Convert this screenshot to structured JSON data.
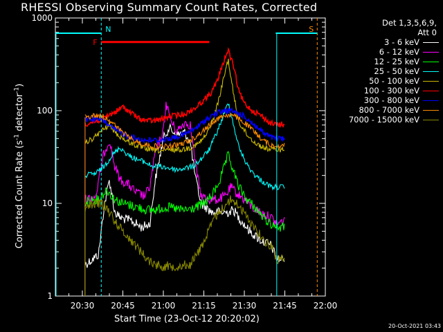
{
  "title": "RHESSI Observing Summary Count Rates, Corrected",
  "footer": "20-Oct-2021 03:43",
  "legend": {
    "header_line1": "Det 1,3,5,6,9,",
    "header_line2": "Att 0"
  },
  "chart_data": {
    "type": "line",
    "title": "RHESSI Observing Summary Count Rates, Corrected",
    "xlabel": "Start Time (23-Oct-12 20:20:02)",
    "ylabel": "Corrected Count Rate (s-1 detector-1)",
    "y_scale": "log",
    "ylim": [
      1,
      1000
    ],
    "xlim": [
      "20:20",
      "22:00"
    ],
    "x_ticks": [
      "20:30",
      "20:45",
      "21:00",
      "21:15",
      "21:30",
      "21:45",
      "22:00"
    ],
    "y_ticks": [
      "1",
      "10",
      "100",
      "1000"
    ],
    "grid": false,
    "legend_position": "right-outside",
    "annotations": [
      {
        "label": "N",
        "time": "20:37",
        "color": "#00ffff",
        "style": "dashed"
      },
      {
        "label": "S",
        "time": "21:57",
        "color": "#ff8c00",
        "style": "dashed"
      },
      {
        "label": "F",
        "start": "20:37",
        "end": "21:17",
        "level": 550,
        "color": "#ff0000"
      }
    ],
    "series": [
      {
        "name": "3 - 6 keV",
        "color": "#ffffff",
        "points": [
          [
            "20:31",
            2.2
          ],
          [
            "20:33",
            2.4
          ],
          [
            "20:36",
            2.8
          ],
          [
            "20:38",
            9
          ],
          [
            "20:40",
            18
          ],
          [
            "20:42",
            8
          ],
          [
            "20:44",
            7
          ],
          [
            "20:48",
            6.5
          ],
          [
            "20:52",
            5.5
          ],
          [
            "20:55",
            6
          ],
          [
            "20:57",
            18
          ],
          [
            "21:00",
            50
          ],
          [
            "21:02",
            65
          ],
          [
            "21:05",
            55
          ],
          [
            "21:08",
            58
          ],
          [
            "21:10",
            45
          ],
          [
            "21:12",
            18
          ],
          [
            "21:14",
            10
          ],
          [
            "21:18",
            8
          ],
          [
            "21:22",
            8
          ],
          [
            "21:24",
            8
          ],
          [
            "21:26",
            8.5
          ],
          [
            "21:28",
            7
          ],
          [
            "21:32",
            5
          ],
          [
            "21:36",
            4
          ],
          [
            "21:40",
            3.5
          ],
          [
            "21:42",
            2.5
          ],
          [
            "21:45",
            2.5
          ]
        ]
      },
      {
        "name": "6 - 12 keV",
        "color": "#ff00ff",
        "points": [
          [
            "20:31",
            11
          ],
          [
            "20:35",
            12
          ],
          [
            "20:38",
            35
          ],
          [
            "20:40",
            48
          ],
          [
            "20:42",
            25
          ],
          [
            "20:44",
            18
          ],
          [
            "20:47",
            16
          ],
          [
            "20:50",
            13
          ],
          [
            "20:53",
            12
          ],
          [
            "20:55",
            15
          ],
          [
            "20:57",
            35
          ],
          [
            "21:00",
            60
          ],
          [
            "21:01",
            120
          ],
          [
            "21:03",
            75
          ],
          [
            "21:05",
            60
          ],
          [
            "21:08",
            75
          ],
          [
            "21:10",
            70
          ],
          [
            "21:12",
            25
          ],
          [
            "21:14",
            12
          ],
          [
            "21:17",
            11
          ],
          [
            "21:20",
            11
          ],
          [
            "21:23",
            12
          ],
          [
            "21:25",
            15
          ],
          [
            "21:27",
            13
          ],
          [
            "21:30",
            11
          ],
          [
            "21:33",
            9
          ],
          [
            "21:36",
            8
          ],
          [
            "21:40",
            7
          ],
          [
            "21:42",
            6
          ],
          [
            "21:45",
            6.5
          ]
        ]
      },
      {
        "name": "12 - 25 keV",
        "color": "#00ff00",
        "points": [
          [
            "20:31",
            10
          ],
          [
            "20:33",
            11
          ],
          [
            "20:36",
            11
          ],
          [
            "20:39",
            14
          ],
          [
            "20:42",
            11
          ],
          [
            "20:45",
            10
          ],
          [
            "20:48",
            9.5
          ],
          [
            "20:51",
            9
          ],
          [
            "20:54",
            8.5
          ],
          [
            "20:57",
            8.5
          ],
          [
            "21:00",
            9
          ],
          [
            "21:03",
            9
          ],
          [
            "21:06",
            8.5
          ],
          [
            "21:09",
            8.5
          ],
          [
            "21:12",
            9
          ],
          [
            "21:15",
            10
          ],
          [
            "21:18",
            12
          ],
          [
            "21:21",
            18
          ],
          [
            "21:24",
            33
          ],
          [
            "21:26",
            22
          ],
          [
            "21:28",
            15
          ],
          [
            "21:31",
            11
          ],
          [
            "21:34",
            9
          ],
          [
            "21:37",
            7
          ],
          [
            "21:40",
            6
          ],
          [
            "21:43",
            5.5
          ],
          [
            "21:45",
            5.5
          ]
        ]
      },
      {
        "name": "25 - 50 keV",
        "color": "#00ffff",
        "points": [
          [
            "20:31",
            20
          ],
          [
            "20:35",
            21
          ],
          [
            "20:38",
            25
          ],
          [
            "20:41",
            33
          ],
          [
            "20:44",
            40
          ],
          [
            "20:47",
            33
          ],
          [
            "20:50",
            30
          ],
          [
            "20:53",
            28
          ],
          [
            "20:56",
            25
          ],
          [
            "20:59",
            25
          ],
          [
            "21:02",
            24
          ],
          [
            "21:05",
            23
          ],
          [
            "21:08",
            24
          ],
          [
            "21:11",
            25
          ],
          [
            "21:14",
            30
          ],
          [
            "21:17",
            38
          ],
          [
            "21:20",
            60
          ],
          [
            "21:23",
            100
          ],
          [
            "21:24",
            125
          ],
          [
            "21:26",
            70
          ],
          [
            "21:28",
            40
          ],
          [
            "21:31",
            26
          ],
          [
            "21:34",
            20
          ],
          [
            "21:37",
            17
          ],
          [
            "21:40",
            15
          ],
          [
            "21:45",
            15
          ]
        ]
      },
      {
        "name": "50 - 100 keV",
        "color": "#ccbb00",
        "points": [
          [
            "20:31",
            45
          ],
          [
            "20:34",
            50
          ],
          [
            "20:37",
            60
          ],
          [
            "20:40",
            70
          ],
          [
            "20:43",
            55
          ],
          [
            "20:46",
            48
          ],
          [
            "20:49",
            43
          ],
          [
            "20:52",
            40
          ],
          [
            "20:55",
            38
          ],
          [
            "20:58",
            37
          ],
          [
            "21:01",
            37
          ],
          [
            "21:04",
            38
          ],
          [
            "21:07",
            38
          ],
          [
            "21:10",
            40
          ],
          [
            "21:13",
            44
          ],
          [
            "21:16",
            55
          ],
          [
            "21:19",
            90
          ],
          [
            "21:21",
            150
          ],
          [
            "21:23",
            270
          ],
          [
            "21:24",
            360
          ],
          [
            "21:26",
            150
          ],
          [
            "21:28",
            75
          ],
          [
            "21:31",
            55
          ],
          [
            "21:34",
            45
          ],
          [
            "21:37",
            40
          ],
          [
            "21:40",
            38
          ],
          [
            "21:45",
            38
          ]
        ]
      },
      {
        "name": "100 - 300 keV",
        "color": "#ff0000",
        "points": [
          [
            "20:31",
            72
          ],
          [
            "20:34",
            75
          ],
          [
            "20:37",
            80
          ],
          [
            "20:40",
            90
          ],
          [
            "20:43",
            100
          ],
          [
            "20:45",
            110
          ],
          [
            "20:48",
            95
          ],
          [
            "20:51",
            82
          ],
          [
            "20:54",
            78
          ],
          [
            "20:57",
            78
          ],
          [
            "21:00",
            82
          ],
          [
            "21:03",
            88
          ],
          [
            "21:06",
            90
          ],
          [
            "21:09",
            95
          ],
          [
            "21:12",
            108
          ],
          [
            "21:15",
            130
          ],
          [
            "21:18",
            160
          ],
          [
            "21:20",
            210
          ],
          [
            "21:22",
            320
          ],
          [
            "21:24",
            450
          ],
          [
            "21:26",
            300
          ],
          [
            "21:28",
            160
          ],
          [
            "21:30",
            120
          ],
          [
            "21:33",
            100
          ],
          [
            "21:36",
            90
          ],
          [
            "21:39",
            75
          ],
          [
            "21:42",
            70
          ],
          [
            "21:45",
            72
          ]
        ]
      },
      {
        "name": "300 - 800 keV",
        "color": "#0000ff",
        "points": [
          [
            "20:31",
            80
          ],
          [
            "20:35",
            82
          ],
          [
            "20:38",
            78
          ],
          [
            "20:41",
            65
          ],
          [
            "20:44",
            58
          ],
          [
            "20:47",
            53
          ],
          [
            "20:50",
            50
          ],
          [
            "20:53",
            48
          ],
          [
            "20:56",
            48
          ],
          [
            "20:59",
            48
          ],
          [
            "21:02",
            50
          ],
          [
            "21:05",
            52
          ],
          [
            "21:08",
            56
          ],
          [
            "21:11",
            62
          ],
          [
            "21:14",
            72
          ],
          [
            "21:17",
            85
          ],
          [
            "21:20",
            95
          ],
          [
            "21:23",
            100
          ],
          [
            "21:26",
            98
          ],
          [
            "21:29",
            90
          ],
          [
            "21:32",
            78
          ],
          [
            "21:35",
            65
          ],
          [
            "21:38",
            55
          ],
          [
            "21:41",
            50
          ],
          [
            "21:45",
            50
          ]
        ]
      },
      {
        "name": "800 - 7000 keV",
        "color": "#ff8c00",
        "points": [
          [
            "20:31",
            85
          ],
          [
            "20:34",
            88
          ],
          [
            "20:37",
            88
          ],
          [
            "20:40",
            80
          ],
          [
            "20:43",
            65
          ],
          [
            "20:46",
            55
          ],
          [
            "20:49",
            48
          ],
          [
            "20:52",
            44
          ],
          [
            "20:55",
            42
          ],
          [
            "20:58",
            41
          ],
          [
            "21:01",
            41
          ],
          [
            "21:04",
            42
          ],
          [
            "21:07",
            44
          ],
          [
            "21:10",
            48
          ],
          [
            "21:13",
            55
          ],
          [
            "21:16",
            65
          ],
          [
            "21:19",
            78
          ],
          [
            "21:22",
            88
          ],
          [
            "21:25",
            90
          ],
          [
            "21:28",
            82
          ],
          [
            "21:31",
            70
          ],
          [
            "21:34",
            58
          ],
          [
            "21:37",
            48
          ],
          [
            "21:40",
            42
          ],
          [
            "21:45",
            42
          ]
        ]
      },
      {
        "name": "7000 - 15000 keV",
        "color": "#888800",
        "points": [
          [
            "20:31",
            9
          ],
          [
            "20:34",
            10
          ],
          [
            "20:37",
            10
          ],
          [
            "20:39",
            9
          ],
          [
            "20:42",
            6.5
          ],
          [
            "20:45",
            5
          ],
          [
            "20:48",
            4
          ],
          [
            "20:51",
            3.2
          ],
          [
            "20:54",
            2.5
          ],
          [
            "20:57",
            2.2
          ],
          [
            "21:00",
            2.1
          ],
          [
            "21:05",
            2.1
          ],
          [
            "21:10",
            2.2
          ],
          [
            "21:13",
            3
          ],
          [
            "21:16",
            4.5
          ],
          [
            "21:19",
            7
          ],
          [
            "21:22",
            9
          ],
          [
            "21:25",
            11
          ],
          [
            "21:28",
            9.5
          ],
          [
            "21:31",
            7
          ],
          [
            "21:34",
            5.5
          ],
          [
            "21:37",
            4
          ],
          [
            "21:40",
            3.5
          ],
          [
            "21:42",
            2.5
          ],
          [
            "21:45",
            2.5
          ]
        ]
      }
    ]
  }
}
